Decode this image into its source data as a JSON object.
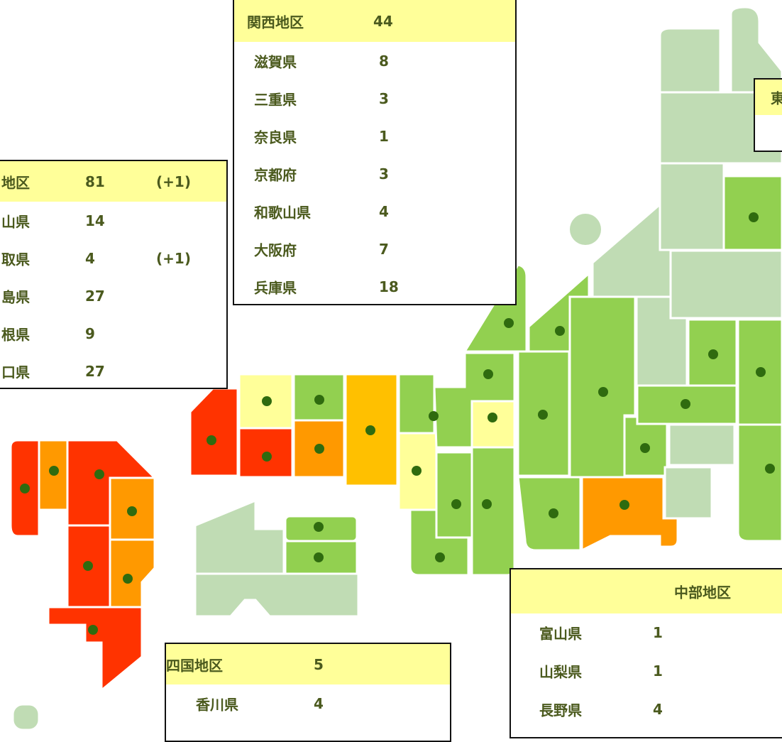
{
  "kansai": {
    "title": "関西地区",
    "total": "44",
    "rows": [
      [
        "滋賀県",
        "8"
      ],
      [
        "三重県",
        "3"
      ],
      [
        "奈良県",
        "1"
      ],
      [
        "京都府",
        "3"
      ],
      [
        "和歌山県",
        "4"
      ],
      [
        "大阪府",
        "7"
      ],
      [
        "兵庫県",
        "18"
      ]
    ]
  },
  "chugoku": {
    "title": "地区",
    "total": "81",
    "change": "(+1)",
    "rows": [
      [
        "山県",
        "14",
        ""
      ],
      [
        "取県",
        "4",
        "(+1)"
      ],
      [
        "島県",
        "27",
        ""
      ],
      [
        "根県",
        "9",
        ""
      ],
      [
        "口県",
        "27",
        ""
      ]
    ]
  },
  "tohoku": {
    "title": "東"
  },
  "chubu": {
    "title": "中部地区",
    "rows": [
      [
        "富山県",
        "1"
      ],
      [
        "山梨県",
        "1"
      ],
      [
        "長野県",
        "4"
      ]
    ]
  },
  "shikoku": {
    "title": "四国地区",
    "total": "5",
    "rows": [
      [
        "香川県",
        "4"
      ]
    ]
  }
}
